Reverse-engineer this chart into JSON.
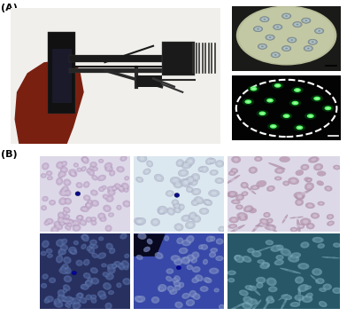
{
  "fig_width": 3.92,
  "fig_height": 3.56,
  "dpi": 100,
  "label_A": "(A)",
  "label_B": "(B)",
  "label_fontsize": 8,
  "bg_color": "#ffffff",
  "phone_bg": "#f5f5f5",
  "phone_bg_inner": "#e8e8e0",
  "fluor_bg": "#050505",
  "bf_bg": "#c0c8a0",
  "bf_circle": "#c8ceaa",
  "fluor_bead": "#44ee44"
}
